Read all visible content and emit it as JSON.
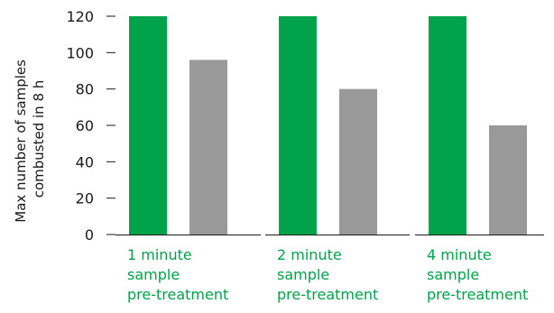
{
  "chart_data": {
    "type": "bar",
    "ylabel_lines": [
      "Max number of samples",
      "combusted in 8 h"
    ],
    "ylim": [
      0,
      120
    ],
    "yticks": [
      0,
      20,
      40,
      60,
      80,
      100,
      120
    ],
    "grid": false,
    "categories": [
      {
        "lines": [
          "1 minute",
          "sample",
          "pre-treatment"
        ]
      },
      {
        "lines": [
          "2 minute",
          "sample",
          "pre-treatment"
        ]
      },
      {
        "lines": [
          "4 minute",
          "sample",
          "pre-treatment"
        ]
      }
    ],
    "series": [
      {
        "values": [
          120,
          120,
          120
        ],
        "color": "#00a34a"
      },
      {
        "values": [
          96,
          80,
          60
        ],
        "color": "#999999"
      }
    ],
    "category_label_color": "#00a34a",
    "axis_color": "#1a1a1a"
  }
}
